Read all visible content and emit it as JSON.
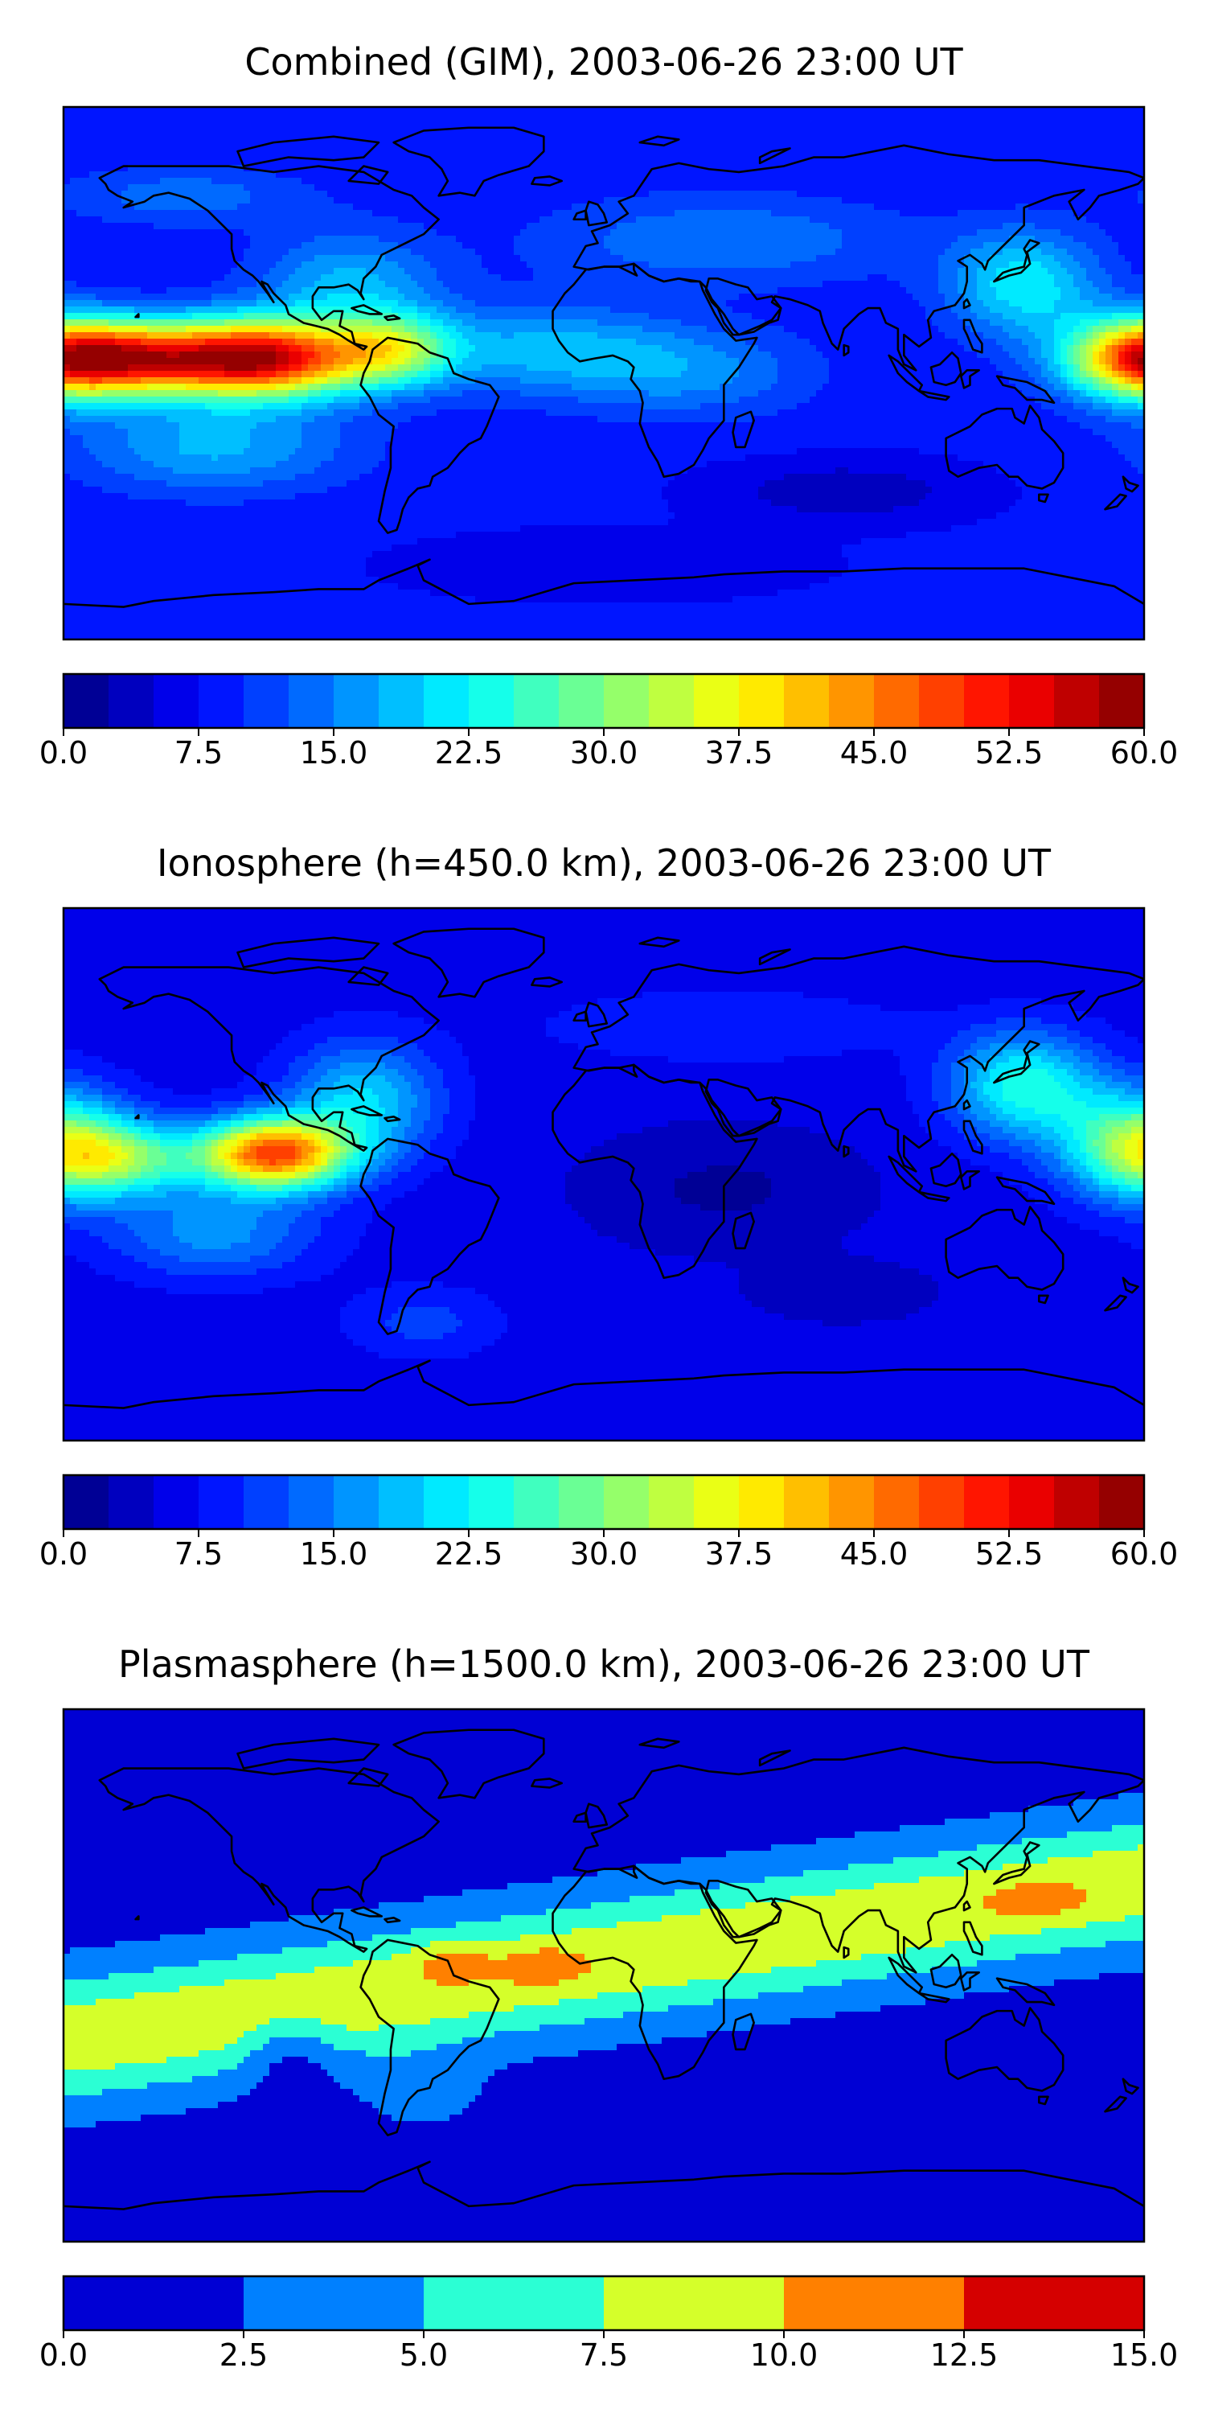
{
  "panels": [
    {
      "title": "Combined (GIM), 2003-06-26 23:00 UT",
      "colorbar": {
        "min": 0,
        "max": 60,
        "step": 2.5,
        "ticks": [
          "0.0",
          "7.5",
          "15.0",
          "22.5",
          "30.0",
          "37.5",
          "45.0",
          "52.5",
          "60.0"
        ]
      },
      "field": {
        "background": 8,
        "blobs": [
          {
            "lon": -115,
            "lat": 5,
            "slon": 35,
            "slat": 13,
            "amp": 48
          },
          {
            "lon": -160,
            "lat": 5,
            "slon": 30,
            "slat": 12,
            "amp": 30
          },
          {
            "lon": -70,
            "lat": 8,
            "slon": 20,
            "slat": 12,
            "amp": 18
          },
          {
            "lon": -85,
            "lat": 30,
            "slon": 30,
            "slat": 18,
            "amp": 10
          },
          {
            "lon": -130,
            "lat": -25,
            "slon": 45,
            "slat": 15,
            "amp": 10
          },
          {
            "lon": -20,
            "lat": 8,
            "slon": 45,
            "slat": 15,
            "amp": 10
          },
          {
            "lon": 30,
            "lat": 0,
            "slon": 40,
            "slat": 15,
            "amp": 7
          },
          {
            "lon": 140,
            "lat": 30,
            "slon": 25,
            "slat": 18,
            "amp": 14
          },
          {
            "lon": 178,
            "lat": 5,
            "slon": 25,
            "slat": 14,
            "amp": 30
          },
          {
            "lon": 40,
            "lat": 45,
            "slon": 60,
            "slat": 15,
            "amp": 7
          },
          {
            "lon": -140,
            "lat": 60,
            "slon": 40,
            "slat": 10,
            "amp": 6
          },
          {
            "lon": 80,
            "lat": -40,
            "slon": 40,
            "slat": 10,
            "amp": -5
          },
          {
            "lon": 0,
            "lat": -65,
            "slon": 60,
            "slat": 10,
            "amp": -3
          }
        ]
      }
    },
    {
      "title": "Ionosphere  (h=450.0 km), 2003-06-26 23:00 UT",
      "colorbar": {
        "min": 0,
        "max": 60,
        "step": 2.5,
        "ticks": [
          "0.0",
          "7.5",
          "15.0",
          "22.5",
          "30.0",
          "37.5",
          "45.0",
          "52.5",
          "60.0"
        ]
      },
      "field": {
        "background": 6,
        "blobs": [
          {
            "lon": -110,
            "lat": 7,
            "slon": 25,
            "slat": 12,
            "amp": 42
          },
          {
            "lon": -160,
            "lat": 5,
            "slon": 25,
            "slat": 12,
            "amp": 18
          },
          {
            "lon": -80,
            "lat": 25,
            "slon": 25,
            "slat": 20,
            "amp": 14
          },
          {
            "lon": -130,
            "lat": -20,
            "slon": 35,
            "slat": 15,
            "amp": 10
          },
          {
            "lon": 140,
            "lat": 30,
            "slon": 25,
            "slat": 18,
            "amp": 18
          },
          {
            "lon": 178,
            "lat": 10,
            "slon": 25,
            "slat": 18,
            "amp": 24
          },
          {
            "lon": -60,
            "lat": -50,
            "slon": 25,
            "slat": 12,
            "amp": 5
          },
          {
            "lon": 40,
            "lat": 50,
            "slon": 60,
            "slat": 12,
            "amp": 4
          },
          {
            "lon": 40,
            "lat": -5,
            "slon": 45,
            "slat": 20,
            "amp": -4
          },
          {
            "lon": 80,
            "lat": -40,
            "slon": 30,
            "slat": 10,
            "amp": -3
          }
        ]
      }
    },
    {
      "title": "Plasmasphere (h=1500.0 km), 2003-06-26 23:00 UT",
      "colorbar": {
        "min": 0,
        "max": 15,
        "step": 2.5,
        "ticks": [
          "0.0",
          "2.5",
          "5.0",
          "7.5",
          "10.0",
          "12.5",
          "15.0"
        ]
      },
      "field": {
        "background": 1.2,
        "band": {
          "lat0": 5,
          "slope": 0.15,
          "width": 22,
          "amp": 8.3
        },
        "blobs": [
          {
            "lon": -50,
            "lat": 5,
            "slon": 12,
            "slat": 6,
            "amp": 2.8
          },
          {
            "lon": -20,
            "lat": 3,
            "slon": 12,
            "slat": 6,
            "amp": 2.8
          },
          {
            "lon": 145,
            "lat": 25,
            "slon": 15,
            "slat": 6,
            "amp": 2.2
          },
          {
            "lon": -105,
            "lat": -25,
            "slon": 15,
            "slat": 14,
            "amp": -3.5
          },
          {
            "lon": -60,
            "lat": -40,
            "slon": 18,
            "slat": 12,
            "amp": 2.5
          },
          {
            "lon": 160,
            "lat": -25,
            "slon": 20,
            "slat": 10,
            "amp": -2.5
          }
        ]
      }
    }
  ]
}
